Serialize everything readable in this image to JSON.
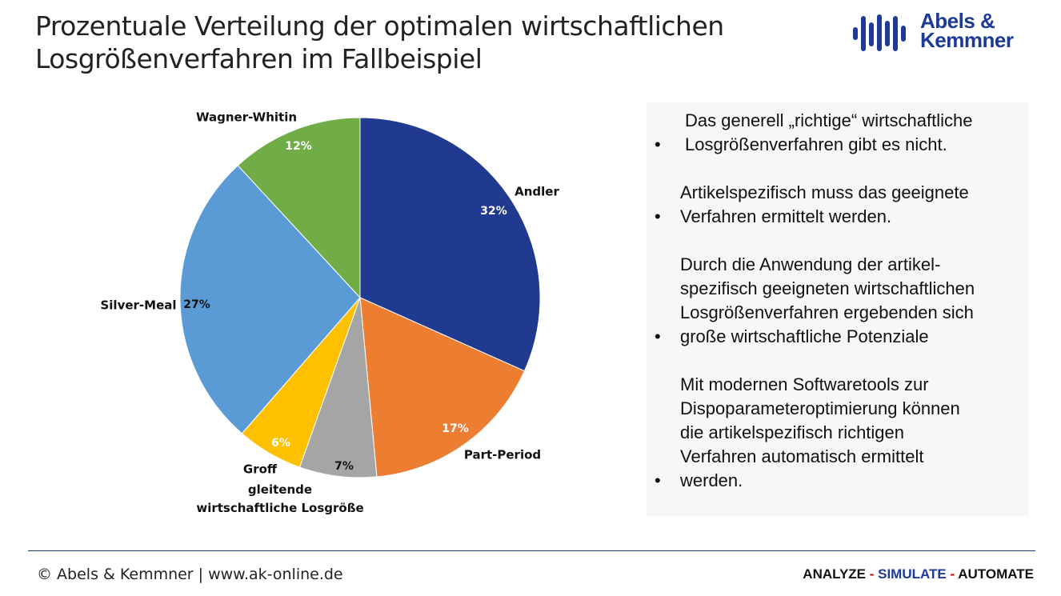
{
  "header": {
    "title": "Prozentuale Verteilung der optimalen wirtschaftlichen\nLosgrößenverfahren im Fallbeispiel",
    "logo": "Abels &\nKemmner"
  },
  "chart_data": {
    "type": "pie",
    "categories": [
      "Andler",
      "Part-Period",
      "gleitende\nwirtschaftliche Losgröße",
      "Groff",
      "Silver-Meal",
      "Wagner-Whitin"
    ],
    "values": [
      32,
      17,
      7,
      6,
      27,
      12
    ],
    "value_labels": [
      "32%",
      "17%",
      "7%",
      "6%",
      "27%",
      "12%"
    ],
    "colors": [
      "#203a8f",
      "#ed7d31",
      "#a5a5a5",
      "#ffc000",
      "#5b9bd5",
      "#70ad47"
    ]
  },
  "bullets": [
    "Das generell „richtige“ wirtschaftliche\nLosgrößenverfahren gibt es nicht.",
    "Artikelspezifisch muss das geeignete\nVerfahren ermittelt werden.",
    "Durch die Anwendung der artikel-\nspezifisch geeigneten wirtschaftlichen\nLosgrößenverfahren ergebenden sich\ngroße wirtschaftliche Potenziale",
    "Mit modernen Softwaretools zur\nDispoparameteroptimierung können\ndie artikelspezifisch richtigen\nVerfahren automatisch ermittelt\nwerden."
  ],
  "footer": {
    "copyright": "© Abels & Kemmner | www.ak-online.de",
    "slogan": [
      "ANALYZE",
      " - ",
      "SIMULATE",
      " - ",
      "AUTOMATE"
    ]
  }
}
